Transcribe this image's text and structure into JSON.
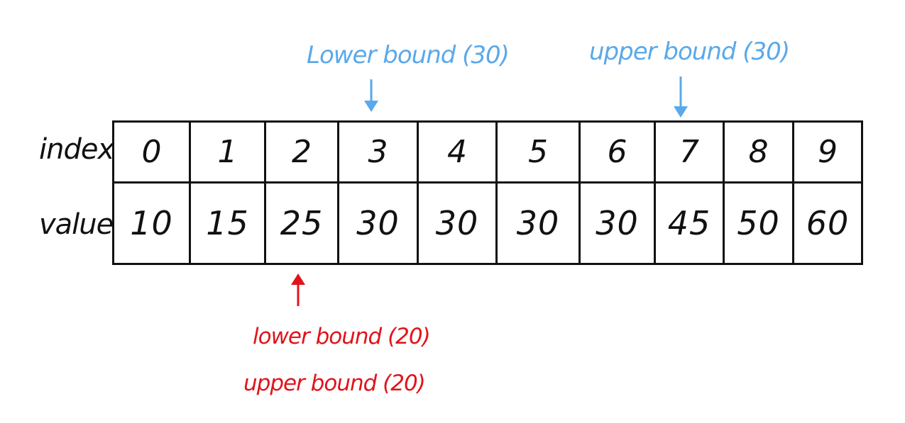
{
  "rows": {
    "index_label": "index",
    "value_label": "value"
  },
  "indices": [
    "0",
    "1",
    "2",
    "3",
    "4",
    "5",
    "6",
    "7",
    "8",
    "9"
  ],
  "values": [
    "10",
    "15",
    "25",
    "30",
    "30",
    "30",
    "30",
    "45",
    "50",
    "60"
  ],
  "annotations": {
    "lower_bound_30": "Lower bound (30)",
    "upper_bound_30": "upper bound (30)",
    "lower_bound_20": "lower bound (20)",
    "upper_bound_20": "upper bound (20)"
  },
  "colors": {
    "ink": "#111111",
    "bound_30": "#5aa9ea",
    "bound_20": "#e0141b"
  }
}
